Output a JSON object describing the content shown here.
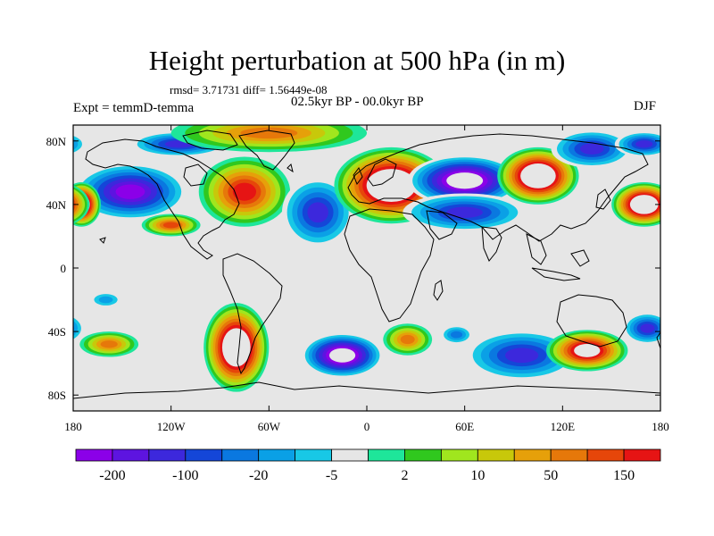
{
  "title": "Height perturbation at 500 hPa (in m)",
  "stats": "rmsd= 3.71731 diff= 1.56449e-08",
  "period": "02.5kyr BP - 00.0kyr BP",
  "experiment": "Expt = temmD-temma",
  "season": "DJF",
  "map": {
    "projection": "cylindrical equidistant",
    "lon_range": [
      -180,
      180
    ],
    "lat_range": [
      -90,
      90
    ],
    "background_color": "#e6e6e6",
    "x_ticks": [
      {
        "lon": -180,
        "label": "180"
      },
      {
        "lon": -120,
        "label": "120W"
      },
      {
        "lon": -60,
        "label": "60W"
      },
      {
        "lon": 0,
        "label": "0"
      },
      {
        "lon": 60,
        "label": "60E"
      },
      {
        "lon": 120,
        "label": "120E"
      },
      {
        "lon": 180,
        "label": "180"
      }
    ],
    "y_ticks": [
      {
        "lat": 80,
        "label": "80N"
      },
      {
        "lat": 40,
        "label": "40N"
      },
      {
        "lat": 0,
        "label": "0"
      },
      {
        "lat": -40,
        "label": "40S"
      },
      {
        "lat": -80,
        "label": "80S"
      }
    ]
  },
  "chart_data": {
    "type": "heatmap",
    "variable": "Height perturbation at 500 hPa",
    "units": "m",
    "x": "longitude",
    "y": "latitude",
    "anomalies": [
      {
        "lon": -145,
        "lat": 48,
        "lon_radius": 35,
        "lat_radius": 18,
        "level": -8
      },
      {
        "lon": -115,
        "lat": 78,
        "lon_radius": 30,
        "lat_radius": 8,
        "level": -6
      },
      {
        "lon": -175,
        "lat": 40,
        "lon_radius": 12,
        "lat_radius": 14,
        "level": 12
      },
      {
        "lon": 170,
        "lat": 40,
        "lon_radius": 20,
        "lat_radius": 14,
        "level": 12
      },
      {
        "lon": -120,
        "lat": 27,
        "lon_radius": 18,
        "lat_radius": 7,
        "level": 7
      },
      {
        "lon": -75,
        "lat": 48,
        "lon_radius": 28,
        "lat_radius": 22,
        "level": 8
      },
      {
        "lon": -60,
        "lat": 85,
        "lon_radius": 60,
        "lat_radius": 12,
        "level": 6
      },
      {
        "lon": -30,
        "lat": 35,
        "lon_radius": 22,
        "lat_radius": 22,
        "level": -6
      },
      {
        "lon": 15,
        "lat": 52,
        "lon_radius": 35,
        "lat_radius": 24,
        "level": 12
      },
      {
        "lon": 60,
        "lat": 55,
        "lon_radius": 35,
        "lat_radius": 16,
        "level": -10
      },
      {
        "lon": 60,
        "lat": 35,
        "lon_radius": 38,
        "lat_radius": 12,
        "level": -6
      },
      {
        "lon": 105,
        "lat": 58,
        "lon_radius": 25,
        "lat_radius": 18,
        "level": 12
      },
      {
        "lon": 138,
        "lat": 75,
        "lon_radius": 25,
        "lat_radius": 12,
        "level": -6
      },
      {
        "lon": 170,
        "lat": 78,
        "lon_radius": 18,
        "lat_radius": 8,
        "level": -6
      },
      {
        "lon": -160,
        "lat": -20,
        "lon_radius": 10,
        "lat_radius": 5,
        "level": -3
      },
      {
        "lon": -158,
        "lat": -48,
        "lon_radius": 18,
        "lat_radius": 8,
        "level": 6
      },
      {
        "lon": -80,
        "lat": -50,
        "lon_radius": 20,
        "lat_radius": 28,
        "level": 12
      },
      {
        "lon": -15,
        "lat": -55,
        "lon_radius": 25,
        "lat_radius": 14,
        "level": -10
      },
      {
        "lon": 25,
        "lat": -45,
        "lon_radius": 15,
        "lat_radius": 10,
        "level": 6
      },
      {
        "lon": 55,
        "lat": -42,
        "lon_radius": 10,
        "lat_radius": 6,
        "level": -4
      },
      {
        "lon": 95,
        "lat": -55,
        "lon_radius": 35,
        "lat_radius": 16,
        "level": -6
      },
      {
        "lon": 135,
        "lat": -52,
        "lon_radius": 25,
        "lat_radius": 13,
        "level": 10
      },
      {
        "lon": 172,
        "lat": -38,
        "lon_radius": 15,
        "lat_radius": 10,
        "level": -6
      }
    ]
  },
  "colorbar": {
    "colors": [
      "#8b00e8",
      "#5d14e0",
      "#3c28dc",
      "#1446d8",
      "#0a78e0",
      "#0aa0e6",
      "#18c8e6",
      "#e6e6e6",
      "#1ee69a",
      "#30c81e",
      "#a0e61e",
      "#c8c80a",
      "#e6a00a",
      "#e6780a",
      "#e6460a",
      "#e61414"
    ],
    "labels": [
      "-200",
      "-100",
      "-20",
      "-5",
      "2",
      "10",
      "50",
      "150"
    ],
    "levels": [
      -8,
      -7,
      -6,
      -5,
      -4,
      -3,
      -2,
      -1,
      1,
      2,
      3,
      4,
      5,
      6,
      7,
      8
    ]
  }
}
